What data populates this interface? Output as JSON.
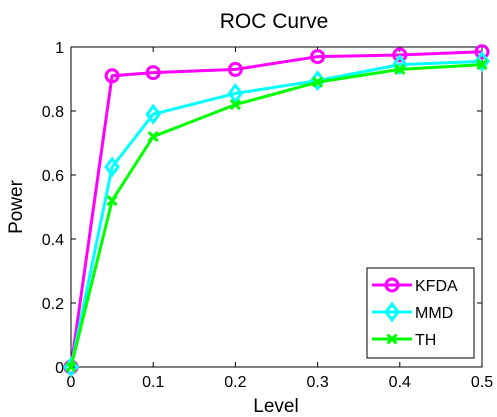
{
  "chart_data": {
    "type": "line",
    "title": "ROC Curve",
    "xlabel": "Level",
    "ylabel": "Power",
    "xlim": [
      0,
      0.5
    ],
    "ylim": [
      0,
      1
    ],
    "x": [
      0,
      0.05,
      0.1,
      0.2,
      0.3,
      0.4,
      0.5
    ],
    "x_ticks": [
      "0",
      "0.1",
      "0.2",
      "0.3",
      "0.4",
      "0.5"
    ],
    "y_ticks": [
      "0",
      "0.2",
      "0.4",
      "0.6",
      "0.8",
      "1"
    ],
    "grid": false,
    "legend_position": "bottom-right",
    "series": [
      {
        "name": "KFDA",
        "color": "#ff00ff",
        "marker": "circle",
        "values": [
          0,
          0.91,
          0.92,
          0.93,
          0.97,
          0.975,
          0.985
        ]
      },
      {
        "name": "MMD",
        "color": "#00ffff",
        "marker": "diamond",
        "values": [
          0,
          0.625,
          0.79,
          0.855,
          0.895,
          0.945,
          0.955
        ]
      },
      {
        "name": "TH",
        "color": "#00ff00",
        "marker": "x",
        "values": [
          0,
          0.52,
          0.72,
          0.82,
          0.89,
          0.93,
          0.945
        ]
      }
    ]
  }
}
